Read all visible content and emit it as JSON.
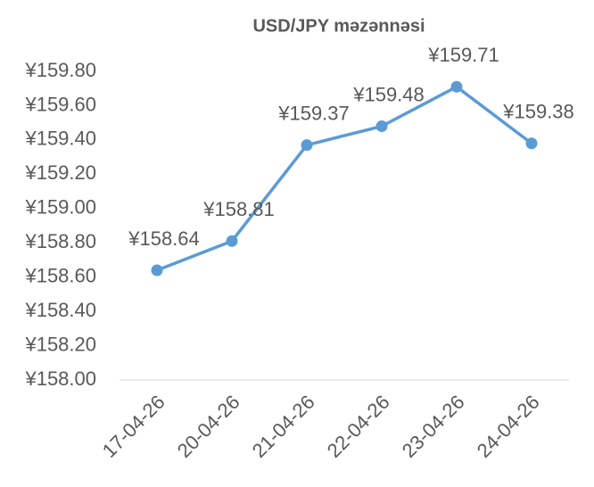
{
  "chart_data": {
    "type": "line",
    "title": "USD/JPY məzənnəsi",
    "categories": [
      "17-04-26",
      "20-04-26",
      "21-04-26",
      "22-04-26",
      "23-04-26",
      "24-04-26"
    ],
    "series": [
      {
        "name": "USD/JPY",
        "color": "#5b9bd5",
        "values": [
          158.64,
          158.81,
          159.37,
          159.48,
          159.71,
          159.38
        ],
        "value_labels": [
          "¥158.64",
          "¥158.81",
          "¥159.37",
          "¥159.48",
          "¥159.71",
          "¥159.38"
        ]
      }
    ],
    "ylim": [
      158.0,
      159.8
    ],
    "yticks": [
      {
        "value": 158.0,
        "label": "¥158.00"
      },
      {
        "value": 158.2,
        "label": "¥158.20"
      },
      {
        "value": 158.4,
        "label": "¥158.40"
      },
      {
        "value": 158.6,
        "label": "¥158.60"
      },
      {
        "value": 158.8,
        "label": "¥158.80"
      },
      {
        "value": 159.0,
        "label": "¥159.00"
      },
      {
        "value": 159.2,
        "label": "¥159.20"
      },
      {
        "value": 159.4,
        "label": "¥159.40"
      },
      {
        "value": 159.6,
        "label": "¥159.60"
      },
      {
        "value": 159.8,
        "label": "¥159.80"
      }
    ],
    "grid": false
  }
}
